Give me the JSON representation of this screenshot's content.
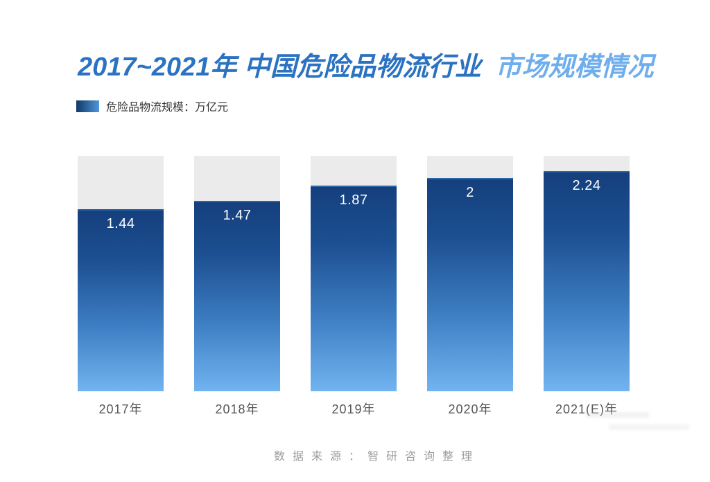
{
  "title": {
    "main": "2017~2021年 中国危险品物流行业",
    "accent": "市场规模情况"
  },
  "legend": {
    "label": "危险品物流规模：万亿元"
  },
  "source": "数据来源：智研咨询整理",
  "colors": {
    "title_main": "#2B72C2",
    "title_accent": "#6FAEEC",
    "swatch_dark": "#0F3969",
    "swatch_light": "#5096D9",
    "bar_top": "#153F7D",
    "bar_bottom": "#71B4F0",
    "track": "#EBEBEB",
    "value_label": "#FFFFFF",
    "axis_label": "#565656",
    "source_text": "#9B9B9B"
  },
  "chart_data": {
    "type": "bar",
    "title": "2017~2021年 中国危险品物流行业 市场规模情况",
    "series_name": "危险品物流规模",
    "unit": "万亿元",
    "categories": [
      "2017年",
      "2018年",
      "2019年",
      "2020年",
      "2021(E)年"
    ],
    "values": [
      1.44,
      1.47,
      1.87,
      2,
      2.24
    ],
    "value_labels": [
      "1.44",
      "1.47",
      "1.87",
      "2",
      "2.24"
    ],
    "grid": false,
    "legend_position": "top-left",
    "value_label_position": "inside-top",
    "track_full_height": true,
    "bar_fill_pct": [
      77.4,
      80.9,
      87.4,
      90.6,
      93.5
    ]
  }
}
